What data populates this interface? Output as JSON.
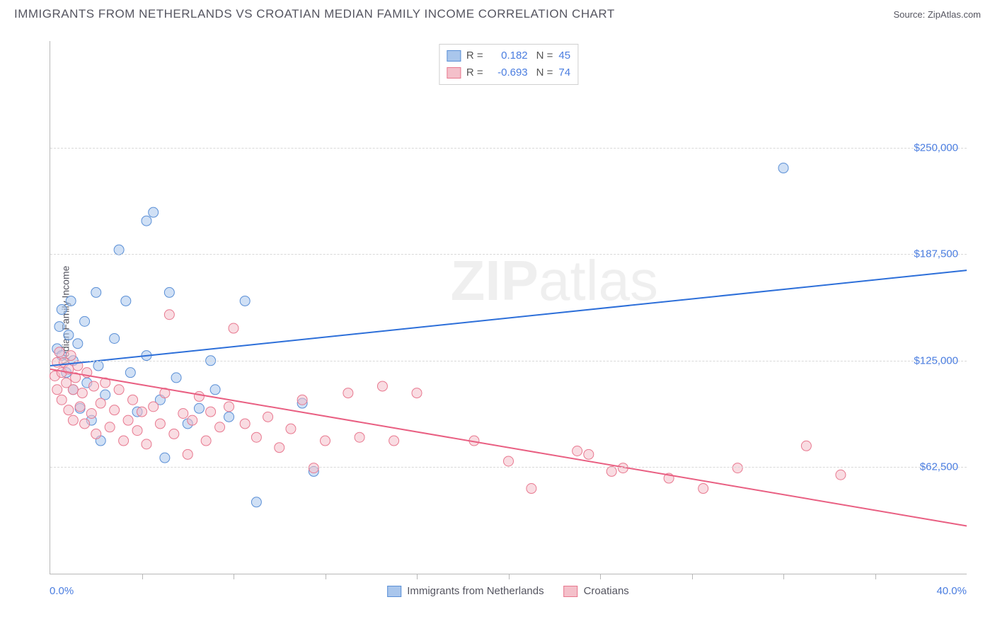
{
  "header": {
    "title": "IMMIGRANTS FROM NETHERLANDS VS CROATIAN MEDIAN FAMILY INCOME CORRELATION CHART",
    "source_label": "Source: ZipAtlas.com"
  },
  "watermark": {
    "bold": "ZIP",
    "light": "atlas"
  },
  "chart": {
    "type": "scatter",
    "ylabel": "Median Family Income",
    "xlim": [
      0,
      40
    ],
    "ylim": [
      0,
      312500
    ],
    "x_min_label": "0.0%",
    "x_max_label": "40.0%",
    "y_ticks": [
      {
        "value": 62500,
        "label": "$62,500"
      },
      {
        "value": 125000,
        "label": "$125,000"
      },
      {
        "value": 187500,
        "label": "$187,500"
      },
      {
        "value": 250000,
        "label": "$250,000"
      }
    ],
    "x_minor_ticks": [
      4,
      8,
      12,
      16,
      20,
      24,
      28,
      32,
      36
    ],
    "background_color": "#ffffff",
    "grid_color": "#d8d8d8",
    "axis_color": "#b8b8b8",
    "tick_label_color": "#4a7de0",
    "marker_radius": 7,
    "marker_opacity": 0.55,
    "trendline_width": 2,
    "series": [
      {
        "name": "Immigrants from Netherlands",
        "fill_color": "#a9c6ec",
        "stroke_color": "#5a8fd6",
        "trend_color": "#2d6fd9",
        "R": "0.182",
        "N": "45",
        "trendline": {
          "y_at_x0": 122000,
          "y_at_x40": 178000
        },
        "points": [
          {
            "x": 0.3,
            "y": 132000
          },
          {
            "x": 0.4,
            "y": 145000
          },
          {
            "x": 0.5,
            "y": 128000
          },
          {
            "x": 0.5,
            "y": 155000
          },
          {
            "x": 0.7,
            "y": 118000
          },
          {
            "x": 0.8,
            "y": 140000
          },
          {
            "x": 0.9,
            "y": 160000
          },
          {
            "x": 1.0,
            "y": 125000
          },
          {
            "x": 1.0,
            "y": 108000
          },
          {
            "x": 1.2,
            "y": 135000
          },
          {
            "x": 1.3,
            "y": 97000
          },
          {
            "x": 1.5,
            "y": 148000
          },
          {
            "x": 1.6,
            "y": 112000
          },
          {
            "x": 1.8,
            "y": 90000
          },
          {
            "x": 2.0,
            "y": 165000
          },
          {
            "x": 2.1,
            "y": 122000
          },
          {
            "x": 2.2,
            "y": 78000
          },
          {
            "x": 2.4,
            "y": 105000
          },
          {
            "x": 2.8,
            "y": 138000
          },
          {
            "x": 3.0,
            "y": 190000
          },
          {
            "x": 3.3,
            "y": 160000
          },
          {
            "x": 3.5,
            "y": 118000
          },
          {
            "x": 3.8,
            "y": 95000
          },
          {
            "x": 4.2,
            "y": 128000
          },
          {
            "x": 4.2,
            "y": 207000
          },
          {
            "x": 4.5,
            "y": 212000
          },
          {
            "x": 4.8,
            "y": 102000
          },
          {
            "x": 5.0,
            "y": 68000
          },
          {
            "x": 5.2,
            "y": 165000
          },
          {
            "x": 5.5,
            "y": 115000
          },
          {
            "x": 6.0,
            "y": 88000
          },
          {
            "x": 6.5,
            "y": 97000
          },
          {
            "x": 7.0,
            "y": 125000
          },
          {
            "x": 7.2,
            "y": 108000
          },
          {
            "x": 7.8,
            "y": 92000
          },
          {
            "x": 8.5,
            "y": 160000
          },
          {
            "x": 9.0,
            "y": 42000
          },
          {
            "x": 11.0,
            "y": 100000
          },
          {
            "x": 11.5,
            "y": 60000
          },
          {
            "x": 32.0,
            "y": 238000
          }
        ]
      },
      {
        "name": "Croatians",
        "fill_color": "#f4c0ca",
        "stroke_color": "#e8788f",
        "trend_color": "#e95f82",
        "R": "-0.693",
        "N": "74",
        "trendline": {
          "y_at_x0": 120000,
          "y_at_x40": 28000
        },
        "points": [
          {
            "x": 0.2,
            "y": 116000
          },
          {
            "x": 0.3,
            "y": 124000
          },
          {
            "x": 0.3,
            "y": 108000
          },
          {
            "x": 0.4,
            "y": 130000
          },
          {
            "x": 0.5,
            "y": 118000
          },
          {
            "x": 0.5,
            "y": 102000
          },
          {
            "x": 0.6,
            "y": 124000
          },
          {
            "x": 0.7,
            "y": 112000
          },
          {
            "x": 0.8,
            "y": 96000
          },
          {
            "x": 0.8,
            "y": 120000
          },
          {
            "x": 0.9,
            "y": 128000
          },
          {
            "x": 1.0,
            "y": 108000
          },
          {
            "x": 1.0,
            "y": 90000
          },
          {
            "x": 1.1,
            "y": 115000
          },
          {
            "x": 1.2,
            "y": 122000
          },
          {
            "x": 1.3,
            "y": 98000
          },
          {
            "x": 1.4,
            "y": 106000
          },
          {
            "x": 1.5,
            "y": 88000
          },
          {
            "x": 1.6,
            "y": 118000
          },
          {
            "x": 1.8,
            "y": 94000
          },
          {
            "x": 1.9,
            "y": 110000
          },
          {
            "x": 2.0,
            "y": 82000
          },
          {
            "x": 2.2,
            "y": 100000
          },
          {
            "x": 2.4,
            "y": 112000
          },
          {
            "x": 2.6,
            "y": 86000
          },
          {
            "x": 2.8,
            "y": 96000
          },
          {
            "x": 3.0,
            "y": 108000
          },
          {
            "x": 3.2,
            "y": 78000
          },
          {
            "x": 3.4,
            "y": 90000
          },
          {
            "x": 3.6,
            "y": 102000
          },
          {
            "x": 3.8,
            "y": 84000
          },
          {
            "x": 4.0,
            "y": 95000
          },
          {
            "x": 4.2,
            "y": 76000
          },
          {
            "x": 4.5,
            "y": 98000
          },
          {
            "x": 4.8,
            "y": 88000
          },
          {
            "x": 5.0,
            "y": 106000
          },
          {
            "x": 5.2,
            "y": 152000
          },
          {
            "x": 5.4,
            "y": 82000
          },
          {
            "x": 5.8,
            "y": 94000
          },
          {
            "x": 6.0,
            "y": 70000
          },
          {
            "x": 6.2,
            "y": 90000
          },
          {
            "x": 6.5,
            "y": 104000
          },
          {
            "x": 6.8,
            "y": 78000
          },
          {
            "x": 7.0,
            "y": 95000
          },
          {
            "x": 7.4,
            "y": 86000
          },
          {
            "x": 7.8,
            "y": 98000
          },
          {
            "x": 8.0,
            "y": 144000
          },
          {
            "x": 8.5,
            "y": 88000
          },
          {
            "x": 9.0,
            "y": 80000
          },
          {
            "x": 9.5,
            "y": 92000
          },
          {
            "x": 10.0,
            "y": 74000
          },
          {
            "x": 10.5,
            "y": 85000
          },
          {
            "x": 11.0,
            "y": 102000
          },
          {
            "x": 11.5,
            "y": 62000
          },
          {
            "x": 12.0,
            "y": 78000
          },
          {
            "x": 13.0,
            "y": 106000
          },
          {
            "x": 13.5,
            "y": 80000
          },
          {
            "x": 14.5,
            "y": 110000
          },
          {
            "x": 15.0,
            "y": 78000
          },
          {
            "x": 16.0,
            "y": 106000
          },
          {
            "x": 18.5,
            "y": 78000
          },
          {
            "x": 20.0,
            "y": 66000
          },
          {
            "x": 21.0,
            "y": 50000
          },
          {
            "x": 23.0,
            "y": 72000
          },
          {
            "x": 23.5,
            "y": 70000
          },
          {
            "x": 24.5,
            "y": 60000
          },
          {
            "x": 25.0,
            "y": 62000
          },
          {
            "x": 27.0,
            "y": 56000
          },
          {
            "x": 28.5,
            "y": 50000
          },
          {
            "x": 30.0,
            "y": 62000
          },
          {
            "x": 33.0,
            "y": 75000
          },
          {
            "x": 34.5,
            "y": 58000
          }
        ]
      }
    ],
    "bottom_legend": [
      {
        "label": "Immigrants from Netherlands",
        "series_index": 0
      },
      {
        "label": "Croatians",
        "series_index": 1
      }
    ]
  }
}
